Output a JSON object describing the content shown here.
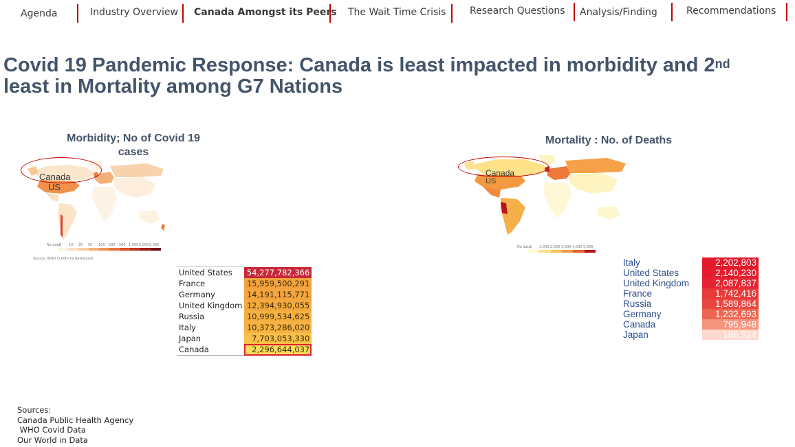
{
  "nav": {
    "items": [
      {
        "label": "Agenda"
      },
      {
        "label": "Industry Overview"
      },
      {
        "label": "Canada Amongst its Peers"
      },
      {
        "label": "The Wait Time Crisis"
      },
      {
        "label": "Research Questions"
      },
      {
        "label": "Analysis/Finding"
      },
      {
        "label": "Recommendations"
      }
    ],
    "active": "Canada Amongst its Peers"
  },
  "slide": {
    "title_part1": "Covid 19 Pandemic Response:  Canada is least impacted in morbidity and 2",
    "title_sup": "nd",
    "title_part2": "least in Mortality among G7 Nations"
  },
  "morbidity": {
    "title": "Morbidity; No of Covid 19 cases",
    "label_canada": "Canada",
    "label_us": "US",
    "legend_ticks": [
      "No data",
      "0",
      "10",
      "20",
      "50",
      "100",
      "200",
      "500",
      "1,000",
      "2,000",
      "5,000"
    ],
    "source_note": "Source: WHO COVID-19 Dashboard",
    "table": [
      {
        "country": "United States",
        "value": "54,277,782,366",
        "color": "#c8283a"
      },
      {
        "country": "France",
        "value": "15,959,500,291",
        "color": "#f4a33f"
      },
      {
        "country": "Germany",
        "value": "14,191,115,771",
        "color": "#f4a53f"
      },
      {
        "country": "United Kingdom",
        "value": "12,394,930,055",
        "color": "#f5aa40"
      },
      {
        "country": "Russia",
        "value": "10,999,534,625",
        "color": "#f6b042"
      },
      {
        "country": "Italy",
        "value": "10,373,286,020",
        "color": "#f6b243"
      },
      {
        "country": "Japan",
        "value": "7,703,053,330",
        "color": "#f8c049"
      },
      {
        "country": "Canada",
        "value": "2,296,644,037",
        "color": "#f9dd5a",
        "highlight": true
      }
    ],
    "highlight_color": "#e0202e"
  },
  "mortality": {
    "title": "Mortality : No. of Deaths",
    "label_canada": "Canada",
    "label_us": "US",
    "legend_ticks": [
      "No data",
      "0",
      "1,000",
      "2,000",
      "3,000",
      "4,000",
      "5,000"
    ],
    "table": [
      {
        "country": "Italy",
        "value": "2,202,803",
        "color": "#e3192c"
      },
      {
        "country": "United States",
        "value": "2,140,230",
        "color": "#e41d2e"
      },
      {
        "country": "United Kingdom",
        "value": "2,087,837",
        "color": "#e52431"
      },
      {
        "country": "France",
        "value": "1,742,416",
        "color": "#e83a3a"
      },
      {
        "country": "Russia",
        "value": "1,589,864",
        "color": "#ea4641"
      },
      {
        "country": "Germany",
        "value": "1,232,693",
        "color": "#ee6651"
      },
      {
        "country": "Canada",
        "value": "795,948",
        "color": "#f6957e"
      },
      {
        "country": "Japan",
        "value": "186,924",
        "color": "#fcd9cf"
      }
    ]
  },
  "sources": {
    "heading": "Sources:",
    "items": [
      "Canada Public Health Agency",
      " WHO Covid Data",
      "Our World in Data"
    ]
  }
}
